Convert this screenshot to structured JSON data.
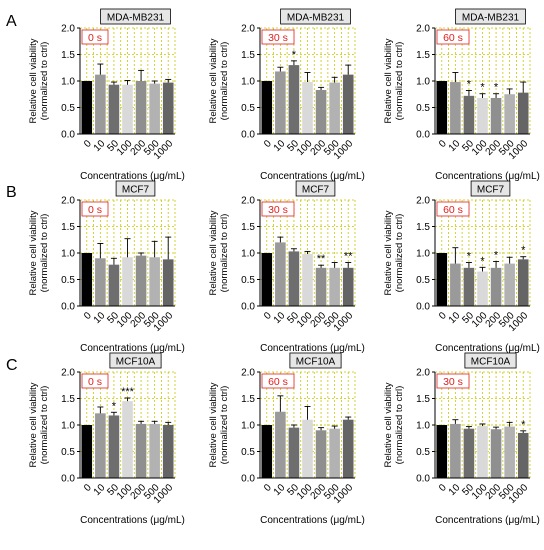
{
  "panel_letters": [
    "A",
    "B",
    "C"
  ],
  "colors": {
    "bars": [
      "#000000",
      "#9a9a9a",
      "#6e6e6e",
      "#d9d9d9",
      "#8f8f8f",
      "#b2b2b2",
      "#656565"
    ],
    "grid": "#c8c800",
    "time_label_text": "#e02020",
    "title_box_fill": "#e6e6e6"
  },
  "chart_data": [
    {
      "type": "bar",
      "row": 0,
      "col": 0,
      "title": "MDA-MB231",
      "time_label": "0 s",
      "categories": [
        "0",
        "10",
        "50",
        "100",
        "200",
        "500",
        "1000"
      ],
      "values": [
        1.0,
        1.12,
        0.93,
        0.93,
        1.0,
        0.95,
        0.97
      ],
      "errors": [
        0,
        0.2,
        0.05,
        0.08,
        0.2,
        0.05,
        0.06
      ],
      "stars": [
        "",
        "",
        "",
        "",
        "",
        "",
        ""
      ],
      "xlabel": "Concentrations (μg/mL)",
      "ylabel_line1": "Relative cell viability",
      "ylabel_line2": "(normalized to ctrl)",
      "ylim": [
        0,
        2.0
      ],
      "yticks": [
        "0.0",
        "0.5",
        "1.0",
        "1.5",
        "2.0"
      ],
      "grid": true
    },
    {
      "type": "bar",
      "row": 0,
      "col": 1,
      "title": "MDA-MB231",
      "time_label": "30 s",
      "categories": [
        "0",
        "10",
        "50",
        "100",
        "200",
        "500",
        "1000"
      ],
      "values": [
        1.0,
        1.18,
        1.3,
        0.98,
        0.83,
        0.97,
        1.12
      ],
      "errors": [
        0,
        0.08,
        0.08,
        0.18,
        0.05,
        0.1,
        0.18
      ],
      "stars": [
        "",
        "",
        "*",
        "",
        "",
        "",
        ""
      ],
      "xlabel": "Concentrations (μg/mL)",
      "ylabel_line1": "Relative cell viability",
      "ylabel_line2": "(normalized to ctrl)",
      "ylim": [
        0,
        2.0
      ],
      "yticks": [
        "0.0",
        "0.5",
        "1.0",
        "1.5",
        "2.0"
      ],
      "grid": true
    },
    {
      "type": "bar",
      "row": 0,
      "col": 2,
      "title": "MDA-MB231",
      "time_label": "60 s",
      "categories": [
        "0",
        "10",
        "50",
        "100",
        "200",
        "500",
        "1000"
      ],
      "values": [
        1.0,
        0.98,
        0.72,
        0.68,
        0.68,
        0.75,
        0.78
      ],
      "errors": [
        0,
        0.18,
        0.1,
        0.08,
        0.08,
        0.1,
        0.2
      ],
      "stars": [
        "",
        "",
        "*",
        "*",
        "*",
        "",
        ""
      ],
      "xlabel": "Concentrations (μg/mL)",
      "ylabel_line1": "Relative cell viability",
      "ylabel_line2": "(normalized to ctrl)",
      "ylim": [
        0,
        2.0
      ],
      "yticks": [
        "0.0",
        "0.5",
        "1.0",
        "1.5",
        "2.0"
      ],
      "grid": true
    },
    {
      "type": "bar",
      "row": 1,
      "col": 0,
      "title": "MCF7",
      "time_label": "0 s",
      "categories": [
        "0",
        "10",
        "50",
        "100",
        "200",
        "500",
        "1000"
      ],
      "values": [
        1.0,
        0.9,
        0.78,
        0.92,
        0.95,
        0.92,
        0.88
      ],
      "errors": [
        0,
        0.28,
        0.12,
        0.35,
        0.05,
        0.3,
        0.42
      ],
      "stars": [
        "",
        "",
        "",
        "",
        "",
        "",
        ""
      ],
      "xlabel": "Concentrations (μg/mL)",
      "ylabel_line1": "Relative cell viability",
      "ylabel_line2": "(normalized to ctrl)",
      "ylim": [
        0,
        2.0
      ],
      "yticks": [
        "0.0",
        "0.5",
        "1.0",
        "1.5",
        "2.0"
      ],
      "grid": true
    },
    {
      "type": "bar",
      "row": 1,
      "col": 1,
      "title": "MCF7",
      "time_label": "30 s",
      "categories": [
        "0",
        "10",
        "50",
        "100",
        "200",
        "500",
        "1000"
      ],
      "values": [
        1.0,
        1.2,
        1.03,
        0.98,
        0.72,
        0.72,
        0.72
      ],
      "errors": [
        0,
        0.1,
        0.05,
        0.05,
        0.05,
        0.1,
        0.1
      ],
      "stars": [
        "",
        "",
        "",
        "",
        "**",
        "",
        "**"
      ],
      "xlabel": "Concentrations (μg/mL)",
      "ylabel_line1": "Relative cell viability",
      "ylabel_line2": "(normalized to ctrl)",
      "ylim": [
        0,
        2.0
      ],
      "yticks": [
        "0.0",
        "0.5",
        "1.0",
        "1.5",
        "2.0"
      ],
      "grid": true
    },
    {
      "type": "bar",
      "row": 1,
      "col": 2,
      "title": "MCF7",
      "time_label": "60 s",
      "categories": [
        "0",
        "10",
        "50",
        "100",
        "200",
        "500",
        "1000"
      ],
      "values": [
        1.0,
        0.8,
        0.72,
        0.65,
        0.72,
        0.8,
        0.88
      ],
      "errors": [
        0,
        0.3,
        0.1,
        0.08,
        0.12,
        0.12,
        0.05
      ],
      "stars": [
        "",
        "",
        "*",
        "*",
        "*",
        "",
        "*"
      ],
      "xlabel": "Concentrations (μg/mL)",
      "ylabel_line1": "Relative cell viability",
      "ylabel_line2": "(normalized to ctrl)",
      "ylim": [
        0,
        2.0
      ],
      "yticks": [
        "0.0",
        "0.5",
        "1.0",
        "1.5",
        "2.0"
      ],
      "grid": true
    },
    {
      "type": "bar",
      "row": 2,
      "col": 0,
      "title": "MCF10A",
      "time_label": "0 s",
      "categories": [
        "0",
        "10",
        "50",
        "100",
        "200",
        "500",
        "1000"
      ],
      "values": [
        1.0,
        1.22,
        1.18,
        1.45,
        1.02,
        1.02,
        1.0
      ],
      "errors": [
        0,
        0.12,
        0.06,
        0.06,
        0.05,
        0.05,
        0.05
      ],
      "stars": [
        "",
        "",
        "*",
        "***",
        "",
        "",
        ""
      ],
      "xlabel": "Concentrations (μg/mL)",
      "ylabel_line1": "Relative cell viability",
      "ylabel_line2": "(normalized to ctrl)",
      "ylim": [
        0,
        2.0
      ],
      "yticks": [
        "0.0",
        "0.5",
        "1.0",
        "1.5",
        "2.0"
      ],
      "grid": true
    },
    {
      "type": "bar",
      "row": 2,
      "col": 1,
      "title": "MCF10A",
      "time_label": "60 s",
      "categories": [
        "0",
        "10",
        "50",
        "100",
        "200",
        "500",
        "1000"
      ],
      "values": [
        1.0,
        1.25,
        0.95,
        1.1,
        0.9,
        0.93,
        1.1
      ],
      "errors": [
        0,
        0.3,
        0.05,
        0.25,
        0.05,
        0.05,
        0.05
      ],
      "stars": [
        "",
        "",
        "",
        "",
        "",
        "",
        ""
      ],
      "xlabel": "Concentrations (μg/mL)",
      "ylabel_line1": "Relative cell viability",
      "ylabel_line2": "(normalized to ctrl)",
      "ylim": [
        0,
        2.0
      ],
      "yticks": [
        "0.0",
        "0.5",
        "1.0",
        "1.5",
        "2.0"
      ],
      "grid": true
    },
    {
      "type": "bar",
      "row": 2,
      "col": 2,
      "title": "MCF10A",
      "time_label": "30 s",
      "categories": [
        "0",
        "10",
        "50",
        "100",
        "200",
        "500",
        "1000"
      ],
      "values": [
        1.0,
        1.02,
        0.93,
        0.98,
        0.92,
        0.97,
        0.85
      ],
      "errors": [
        0,
        0.08,
        0.04,
        0.04,
        0.04,
        0.08,
        0.04
      ],
      "stars": [
        "",
        "",
        "",
        "",
        "",
        "",
        "*"
      ],
      "xlabel": "Concentrations (μg/mL)",
      "ylabel_line1": "Relative cell viability",
      "ylabel_line2": "(normalized to ctrl)",
      "ylim": [
        0,
        2.0
      ],
      "yticks": [
        "0.0",
        "0.5",
        "1.0",
        "1.5",
        "2.0"
      ],
      "grid": true
    }
  ]
}
